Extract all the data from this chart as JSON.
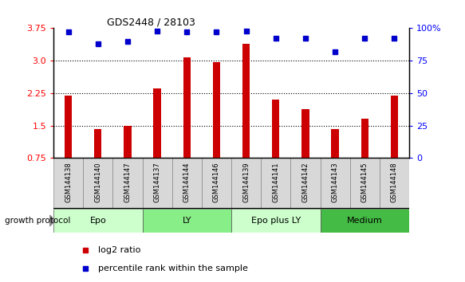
{
  "title": "GDS2448 / 28103",
  "samples": [
    "GSM144138",
    "GSM144140",
    "GSM144147",
    "GSM144137",
    "GSM144144",
    "GSM144146",
    "GSM144139",
    "GSM144141",
    "GSM144142",
    "GSM144143",
    "GSM144145",
    "GSM144148"
  ],
  "log2_ratio": [
    2.2,
    1.42,
    1.5,
    2.35,
    3.07,
    2.97,
    3.38,
    2.1,
    1.88,
    1.42,
    1.65,
    2.2
  ],
  "percentile_rank": [
    97,
    88,
    90,
    98,
    97,
    97,
    98,
    92,
    92,
    82,
    92,
    92
  ],
  "groups": [
    {
      "label": "Epo",
      "start": 0,
      "end": 3,
      "color": "#ccffcc"
    },
    {
      "label": "LY",
      "start": 3,
      "end": 6,
      "color": "#88ee88"
    },
    {
      "label": "Epo plus LY",
      "start": 6,
      "end": 9,
      "color": "#ccffcc"
    },
    {
      "label": "Medium",
      "start": 9,
      "end": 12,
      "color": "#44bb44"
    }
  ],
  "ylim_left": [
    0.75,
    3.75
  ],
  "yticks_left": [
    0.75,
    1.5,
    2.25,
    3.0,
    3.75
  ],
  "ylim_right": [
    0,
    100
  ],
  "yticks_right": [
    0,
    25,
    50,
    75,
    100
  ],
  "bar_color": "#cc0000",
  "dot_color": "#0000cc",
  "bar_width": 0.25,
  "baseline": 0.75,
  "label_log2": "log2 ratio",
  "label_percentile": "percentile rank within the sample",
  "growth_protocol_label": "growth protocol"
}
